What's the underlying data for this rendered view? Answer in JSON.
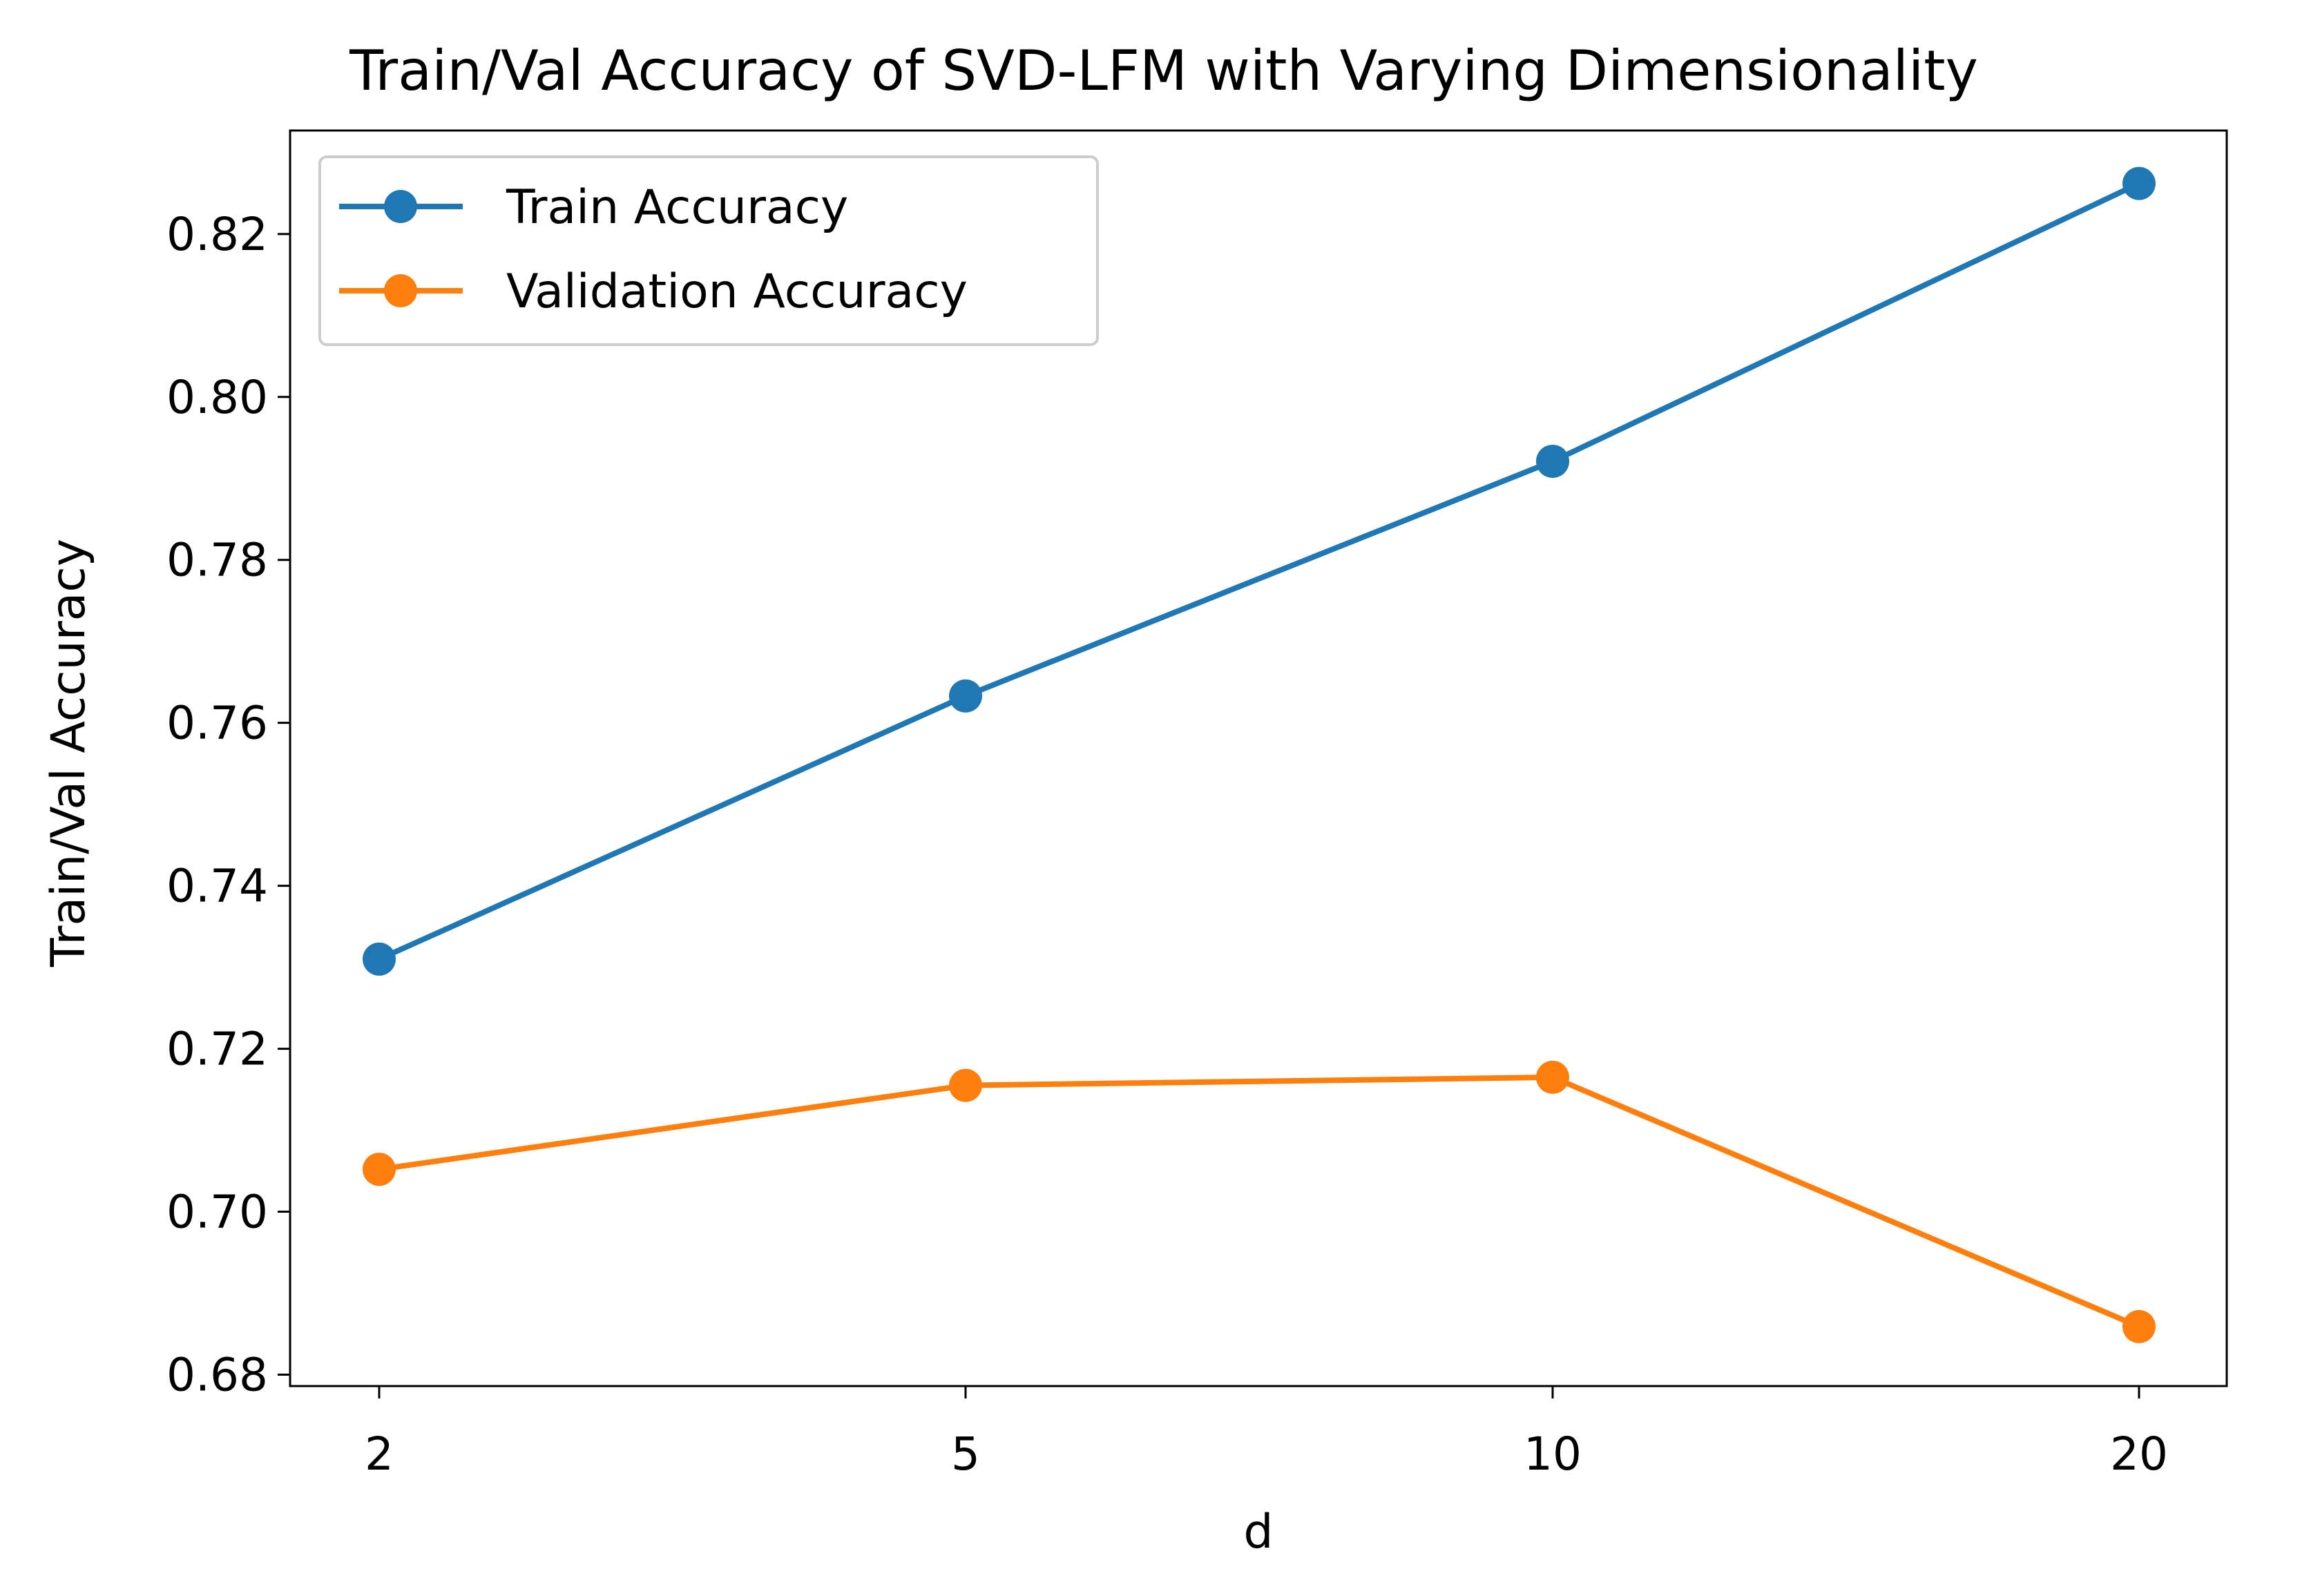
{
  "chart_data": {
    "type": "line",
    "title": "Train/Val Accuracy of SVD-LFM with Varying Dimensionality",
    "xlabel": "d",
    "ylabel": "Train/Val Accuracy",
    "x_scale": "categorical",
    "categories": [
      "2",
      "5",
      "10",
      "20"
    ],
    "ylim": [
      0.6786,
      0.8327
    ],
    "yticks": [
      "0.68",
      "0.70",
      "0.72",
      "0.74",
      "0.76",
      "0.78",
      "0.80",
      "0.82"
    ],
    "grid": false,
    "legend_position": "upper-left",
    "markers": "circle",
    "series": [
      {
        "name": "Train Accuracy",
        "color": "#1f77b4",
        "values": [
          0.731,
          0.7633,
          0.7921,
          0.8262
        ]
      },
      {
        "name": "Validation Accuracy",
        "color": "#ff7f0e",
        "values": [
          0.7052,
          0.7155,
          0.7165,
          0.6859
        ]
      }
    ]
  }
}
